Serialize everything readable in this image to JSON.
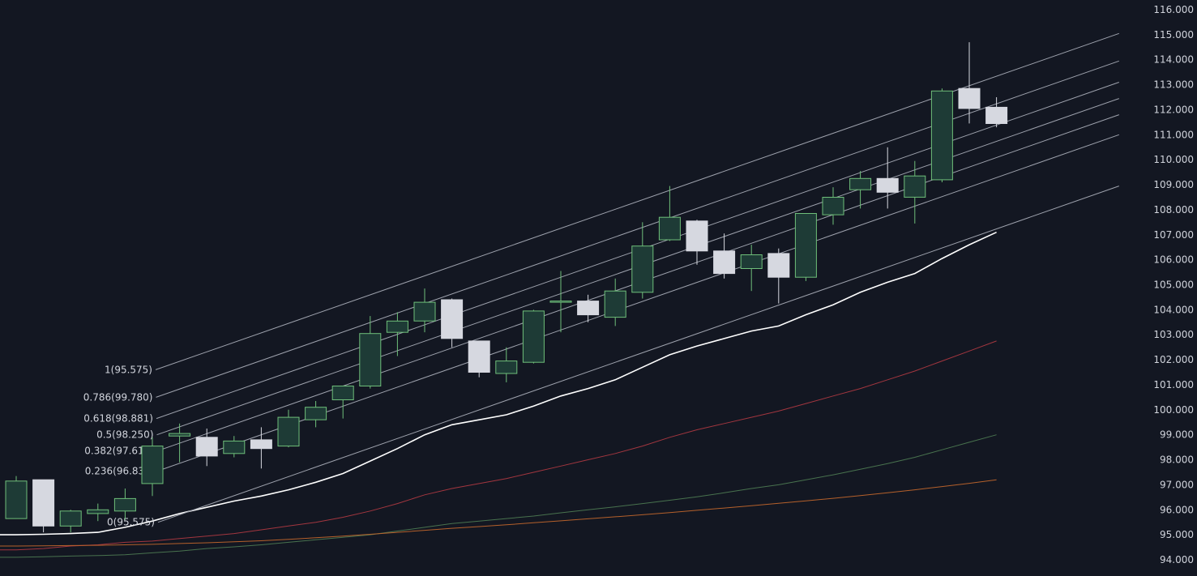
{
  "colors": {
    "background": "#131722",
    "up_fill": "#1e3b36",
    "up_border": "#6fbf7a",
    "down_fill": "#d6d8e0",
    "down_border": "#d6d8e0",
    "fib_line": "#9ea2ad",
    "ma_fast": "#ffffff",
    "ma_mid": "#b33a43",
    "ma_slow": "#4f7c53",
    "ma_long": "#c7682c",
    "text": "#d1d4dc"
  },
  "chart_data": {
    "type": "candlestick",
    "y_axis": {
      "position": "right",
      "range": [
        93.9,
        116.25
      ],
      "ticks": [
        "94.000",
        "95.000",
        "96.000",
        "97.000",
        "98.000",
        "99.000",
        "100.000",
        "101.000",
        "102.000",
        "103.000",
        "104.000",
        "105.000",
        "106.000",
        "107.000",
        "108.000",
        "109.000",
        "110.000",
        "111.000",
        "112.000",
        "113.000",
        "114.000",
        "115.000",
        "116.000"
      ]
    },
    "candles": [
      {
        "o": 95.65,
        "h": 97.35,
        "l": 95.65,
        "c": 97.15
      },
      {
        "o": 97.2,
        "h": 97.2,
        "l": 95.1,
        "c": 95.35
      },
      {
        "o": 95.35,
        "h": 96.0,
        "l": 95.1,
        "c": 95.95
      },
      {
        "o": 95.85,
        "h": 96.25,
        "l": 95.55,
        "c": 96.0
      },
      {
        "o": 95.95,
        "h": 96.85,
        "l": 95.6,
        "c": 96.45
      },
      {
        "o": 97.05,
        "h": 98.9,
        "l": 96.55,
        "c": 98.55
      },
      {
        "o": 98.95,
        "h": 99.45,
        "l": 97.9,
        "c": 99.05
      },
      {
        "o": 98.9,
        "h": 99.25,
        "l": 97.75,
        "c": 98.15
      },
      {
        "o": 98.25,
        "h": 98.95,
        "l": 98.1,
        "c": 98.75
      },
      {
        "o": 98.8,
        "h": 99.3,
        "l": 97.65,
        "c": 98.45
      },
      {
        "o": 98.55,
        "h": 100.0,
        "l": 98.5,
        "c": 99.7
      },
      {
        "o": 99.6,
        "h": 100.35,
        "l": 99.3,
        "c": 100.1
      },
      {
        "o": 100.4,
        "h": 100.95,
        "l": 99.65,
        "c": 100.95
      },
      {
        "o": 100.95,
        "h": 103.75,
        "l": 100.85,
        "c": 103.05
      },
      {
        "o": 103.1,
        "h": 103.9,
        "l": 102.15,
        "c": 103.55
      },
      {
        "o": 103.55,
        "h": 104.85,
        "l": 103.1,
        "c": 104.3
      },
      {
        "o": 104.4,
        "h": 104.45,
        "l": 102.5,
        "c": 102.85
      },
      {
        "o": 102.75,
        "h": 102.75,
        "l": 101.3,
        "c": 101.5
      },
      {
        "o": 101.45,
        "h": 102.5,
        "l": 101.1,
        "c": 101.95
      },
      {
        "o": 101.9,
        "h": 104.0,
        "l": 101.85,
        "c": 103.95
      },
      {
        "o": 104.3,
        "h": 105.55,
        "l": 103.1,
        "c": 104.35
      },
      {
        "o": 104.35,
        "h": 104.6,
        "l": 103.5,
        "c": 103.8
      },
      {
        "o": 103.7,
        "h": 105.25,
        "l": 103.35,
        "c": 104.75
      },
      {
        "o": 104.7,
        "h": 107.5,
        "l": 104.45,
        "c": 106.55
      },
      {
        "o": 106.8,
        "h": 108.95,
        "l": 106.75,
        "c": 107.7
      },
      {
        "o": 107.55,
        "h": 107.6,
        "l": 105.8,
        "c": 106.35
      },
      {
        "o": 106.35,
        "h": 107.05,
        "l": 105.25,
        "c": 105.45
      },
      {
        "o": 105.65,
        "h": 106.6,
        "l": 104.75,
        "c": 106.2
      },
      {
        "o": 106.25,
        "h": 106.45,
        "l": 104.25,
        "c": 105.3
      },
      {
        "o": 105.3,
        "h": 107.85,
        "l": 105.15,
        "c": 107.85
      },
      {
        "o": 107.8,
        "h": 108.9,
        "l": 107.4,
        "c": 108.5
      },
      {
        "o": 108.8,
        "h": 109.55,
        "l": 108.05,
        "c": 109.25
      },
      {
        "o": 109.25,
        "h": 110.5,
        "l": 108.05,
        "c": 108.7
      },
      {
        "o": 108.5,
        "h": 109.95,
        "l": 107.45,
        "c": 109.35
      },
      {
        "o": 109.2,
        "h": 112.85,
        "l": 109.1,
        "c": 112.75
      },
      {
        "o": 112.85,
        "h": 114.7,
        "l": 111.45,
        "c": 112.05
      },
      {
        "o": 112.1,
        "h": 112.5,
        "l": 111.3,
        "c": 111.45
      }
    ],
    "moving_averages": [
      {
        "color_key": "ma_fast",
        "values": [
          95.0,
          95.02,
          95.05,
          95.1,
          95.3,
          95.55,
          95.85,
          96.1,
          96.35,
          96.55,
          96.8,
          97.1,
          97.45,
          97.95,
          98.45,
          99.0,
          99.4,
          99.6,
          99.8,
          100.15,
          100.55,
          100.85,
          101.2,
          101.7,
          102.2,
          102.55,
          102.85,
          103.15,
          103.35,
          103.8,
          104.2,
          104.7,
          105.1,
          105.45,
          106.05,
          106.6,
          107.1
        ]
      },
      {
        "color_key": "ma_mid",
        "values": [
          94.4,
          94.45,
          94.55,
          94.6,
          94.7,
          94.75,
          94.85,
          94.95,
          95.05,
          95.2,
          95.35,
          95.5,
          95.7,
          95.95,
          96.25,
          96.6,
          96.85,
          97.05,
          97.25,
          97.5,
          97.75,
          98.0,
          98.25,
          98.55,
          98.9,
          99.2,
          99.45,
          99.7,
          99.95,
          100.25,
          100.55,
          100.85,
          101.2,
          101.55,
          101.95,
          102.35,
          102.75
        ]
      },
      {
        "color_key": "ma_slow",
        "values": [
          94.1,
          94.12,
          94.15,
          94.17,
          94.2,
          94.28,
          94.35,
          94.45,
          94.52,
          94.6,
          94.7,
          94.8,
          94.9,
          95.0,
          95.15,
          95.3,
          95.45,
          95.55,
          95.65,
          95.75,
          95.88,
          96.0,
          96.12,
          96.25,
          96.38,
          96.52,
          96.68,
          96.85,
          97.0,
          97.2,
          97.4,
          97.62,
          97.85,
          98.1,
          98.4,
          98.7,
          99.0
        ]
      },
      {
        "color_key": "ma_long",
        "values": [
          94.55,
          94.56,
          94.57,
          94.58,
          94.6,
          94.62,
          94.65,
          94.68,
          94.72,
          94.76,
          94.82,
          94.88,
          94.95,
          95.02,
          95.1,
          95.18,
          95.26,
          95.33,
          95.4,
          95.48,
          95.56,
          95.64,
          95.72,
          95.8,
          95.89,
          95.98,
          96.07,
          96.16,
          96.26,
          96.36,
          96.46,
          96.57,
          96.68,
          96.8,
          96.93,
          97.06,
          97.2
        ]
      }
    ],
    "fibonacci_channel": {
      "levels": [
        {
          "label": "1(95.575)",
          "price": 101.6
        },
        {
          "label": "0.786(99.780)",
          "price": 100.5
        },
        {
          "label": "0.618(98.881)",
          "price": 99.65
        },
        {
          "label": "0.5(98.250)",
          "price": 99.0
        },
        {
          "label": "0.382(97.618)",
          "price": 98.35
        },
        {
          "label": "0.236(96.837)",
          "price": 97.55
        },
        {
          "label": "0(95.575)",
          "price": 95.5
        }
      ],
      "start_candle": 5,
      "end_candle": 40.5,
      "rise": 13.45
    }
  }
}
